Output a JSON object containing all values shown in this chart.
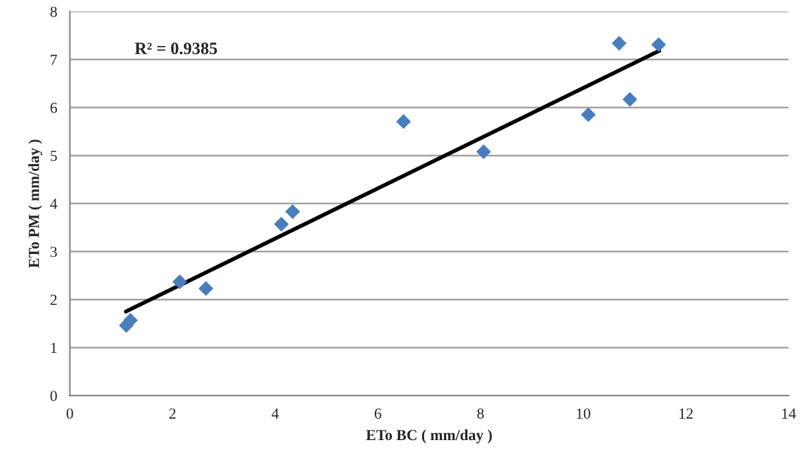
{
  "chart_data": {
    "type": "scatter",
    "xlabel": "ETo BC ( mm/day )",
    "ylabel": "ETo PM ( mm/day )",
    "annotations": [
      "R² = 0.9385"
    ],
    "series": [
      {
        "color": "#4a7ebb",
        "marker": "diamond",
        "x": [
          1.1,
          1.18,
          2.14,
          2.65,
          4.12,
          4.34,
          6.5,
          8.06,
          10.1,
          10.7,
          10.91,
          11.47
        ],
        "values": [
          1.46,
          1.57,
          2.37,
          2.23,
          3.57,
          3.83,
          5.71,
          5.08,
          5.85,
          7.34,
          6.17,
          7.31
        ]
      },
      {
        "type": "line",
        "color": "#000000",
        "marker": "none",
        "line_style": "solid",
        "x": [
          1.09,
          11.48
        ],
        "values": [
          1.75,
          7.18
        ]
      }
    ],
    "xlim": [
      0,
      14
    ],
    "ylim": [
      0,
      8
    ],
    "xticks": [
      0,
      2,
      4,
      6,
      8,
      10,
      12,
      14
    ],
    "yticks": [
      0,
      1,
      2,
      3,
      4,
      5,
      6,
      7,
      8
    ],
    "grid": "y",
    "legend": false
  }
}
